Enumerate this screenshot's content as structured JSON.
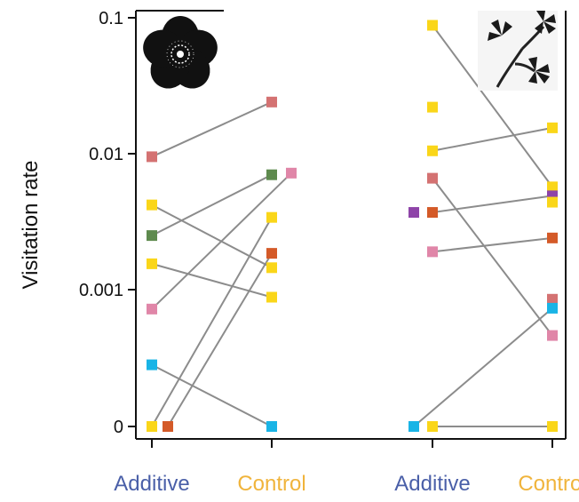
{
  "chart_data": {
    "type": "scatter",
    "ylabel": "Visitation rate",
    "yscale": "log (with zero shown at bottom)",
    "y_ticks": [
      "0.1",
      "0.01",
      "0.001",
      "0"
    ],
    "categories": [
      {
        "label": "Additive",
        "color": "#4a5fa8"
      },
      {
        "label": "Control",
        "color": "#f0b43c"
      },
      {
        "label": "Additive",
        "color": "#4a5fa8"
      },
      {
        "label": "Control",
        "color": "#f0b43c"
      }
    ],
    "panels": [
      {
        "icon": "flower-icon",
        "points": [
          {
            "x": "Additive",
            "y": 0.0095,
            "color": "#d47272"
          },
          {
            "x": "Additive",
            "y": 0.0042,
            "color": "#fad619"
          },
          {
            "x": "Additive",
            "y": 0.0025,
            "color": "#5e8a4e"
          },
          {
            "x": "Additive",
            "y": 0.00155,
            "color": "#fad619"
          },
          {
            "x": "Additive",
            "y": 0.00072,
            "color": "#e086a8"
          },
          {
            "x": "Additive",
            "y": 0.00028,
            "color": "#19b4e6"
          },
          {
            "x": "Additive",
            "y": 0,
            "color": "#fad619"
          },
          {
            "x": "Additive",
            "y": 0,
            "color": "#d45a28"
          },
          {
            "x": "Control",
            "y": 0.024,
            "color": "#d47272"
          },
          {
            "x": "Control",
            "y": 0.007,
            "color": "#5e8a4e"
          },
          {
            "x": "Control",
            "y": 0.0072,
            "color": "#e086a8"
          },
          {
            "x": "Control",
            "y": 0.0034,
            "color": "#fad619"
          },
          {
            "x": "Control",
            "y": 0.00185,
            "color": "#d45a28"
          },
          {
            "x": "Control",
            "y": 0.00145,
            "color": "#fad619"
          },
          {
            "x": "Control",
            "y": 0.00088,
            "color": "#fad619"
          },
          {
            "x": "Control",
            "y": 0,
            "color": "#19b4e6"
          }
        ],
        "pairs": [
          {
            "from": 0.0095,
            "to": 0.024
          },
          {
            "from": 0.0042,
            "to": 0.00145
          },
          {
            "from": 0.0025,
            "to": 0.007
          },
          {
            "from": 0.00155,
            "to": 0.00088
          },
          {
            "from": 0.00072,
            "to": 0.0072
          },
          {
            "from": 0.00028,
            "to": 0
          },
          {
            "from": 0,
            "to": 0.0034
          },
          {
            "from": 0,
            "to": 0.00185
          }
        ]
      },
      {
        "icon": "clover-icon",
        "points": [
          {
            "x": "Additive",
            "y": 0.088,
            "color": "#fad619"
          },
          {
            "x": "Additive",
            "y": 0.022,
            "color": "#fad619"
          },
          {
            "x": "Additive",
            "y": 0.0105,
            "color": "#fad619"
          },
          {
            "x": "Additive",
            "y": 0.0066,
            "color": "#d47272"
          },
          {
            "x": "Additive",
            "y": 0.0037,
            "color": "#8e44a8"
          },
          {
            "x": "Additive",
            "y": 0.0037,
            "color": "#d45a28"
          },
          {
            "x": "Additive",
            "y": 0.0019,
            "color": "#e086a8"
          },
          {
            "x": "Additive",
            "y": 0,
            "color": "#19b4e6"
          },
          {
            "x": "Additive",
            "y": 0,
            "color": "#fad619"
          },
          {
            "x": "Control",
            "y": 0.0155,
            "color": "#fad619"
          },
          {
            "x": "Control",
            "y": 0.0057,
            "color": "#fad619"
          },
          {
            "x": "Control",
            "y": 0.0049,
            "color": "#8e44a8"
          },
          {
            "x": "Control",
            "y": 0.0044,
            "color": "#fad619"
          },
          {
            "x": "Control",
            "y": 0.0024,
            "color": "#d45a28"
          },
          {
            "x": "Control",
            "y": 0.00085,
            "color": "#d47272"
          },
          {
            "x": "Control",
            "y": 0.00073,
            "color": "#19b4e6"
          },
          {
            "x": "Control",
            "y": 0.00046,
            "color": "#e086a8"
          },
          {
            "x": "Control",
            "y": 0,
            "color": "#fad619"
          }
        ],
        "pairs": [
          {
            "from": 0.088,
            "to": 0.0057
          },
          {
            "from": 0.0105,
            "to": 0.0155
          },
          {
            "from": 0.0066,
            "to": 0.00046
          },
          {
            "from": 0.0037,
            "to": 0.0049
          },
          {
            "from": 0.0019,
            "to": 0.0024
          },
          {
            "from": 0,
            "to": 0.00073
          },
          {
            "from": 0,
            "to": 0
          }
        ]
      }
    ]
  }
}
